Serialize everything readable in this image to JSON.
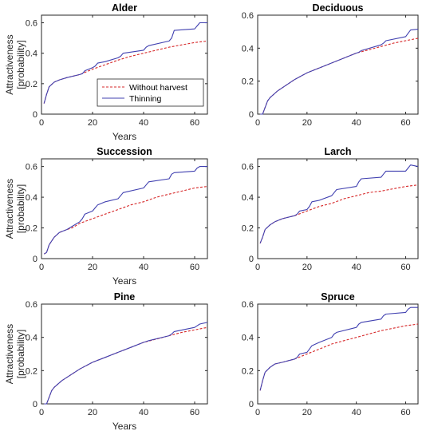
{
  "chart_data": [
    {
      "type": "line",
      "title": "Alder",
      "xlabel": "Years",
      "ylabel": [
        "Attractiveness",
        "[probability]"
      ],
      "xlim": [
        0,
        65
      ],
      "ylim": [
        0,
        0.65
      ],
      "xticks": [
        0,
        20,
        40,
        60
      ],
      "yticks": [
        0,
        0.2,
        0.4,
        0.6
      ],
      "legend": {
        "placement": "bottom-center",
        "entries": [
          "Without harvest",
          "Thinning"
        ]
      },
      "series": [
        {
          "name": "Without harvest",
          "color": "#d62728",
          "dash": true,
          "x": [
            1,
            2,
            3,
            5,
            7,
            10,
            15,
            20,
            25,
            30,
            35,
            40,
            45,
            50,
            55,
            60,
            65
          ],
          "y": [
            0.07,
            0.13,
            0.18,
            0.21,
            0.225,
            0.24,
            0.26,
            0.295,
            0.325,
            0.355,
            0.38,
            0.4,
            0.42,
            0.44,
            0.455,
            0.47,
            0.48
          ]
        },
        {
          "name": "Thinning",
          "color": "#4040b0",
          "dash": false,
          "x": [
            1,
            2,
            3,
            5,
            7,
            10,
            15,
            16,
            17,
            20,
            21,
            22,
            25,
            30,
            31,
            32,
            40,
            41,
            42,
            50,
            51,
            52,
            60,
            61,
            62,
            65
          ],
          "y": [
            0.07,
            0.13,
            0.18,
            0.21,
            0.225,
            0.24,
            0.26,
            0.265,
            0.285,
            0.305,
            0.315,
            0.335,
            0.345,
            0.37,
            0.38,
            0.4,
            0.42,
            0.44,
            0.45,
            0.48,
            0.5,
            0.55,
            0.56,
            0.58,
            0.6,
            0.6
          ]
        }
      ]
    },
    {
      "type": "line",
      "title": "Deciduous",
      "xlabel": "",
      "ylabel": [],
      "xlim": [
        0,
        65
      ],
      "ylim": [
        0,
        0.6
      ],
      "xticks": [
        0,
        20,
        40,
        60
      ],
      "yticks": [
        0,
        0.2,
        0.4,
        0.6
      ],
      "series": [
        {
          "name": "Without harvest",
          "color": "#d62728",
          "dash": true,
          "x": [
            1,
            2,
            3,
            4,
            5,
            8,
            10,
            15,
            20,
            25,
            30,
            35,
            40,
            45,
            50,
            55,
            60,
            65
          ],
          "y": [
            0,
            0,
            0.04,
            0.08,
            0.1,
            0.14,
            0.16,
            0.21,
            0.25,
            0.28,
            0.31,
            0.34,
            0.37,
            0.39,
            0.41,
            0.43,
            0.445,
            0.46
          ]
        },
        {
          "name": "Thinning",
          "color": "#4040b0",
          "dash": false,
          "x": [
            1,
            2,
            3,
            4,
            5,
            8,
            10,
            15,
            20,
            25,
            30,
            35,
            40,
            41,
            42,
            50,
            51,
            52,
            60,
            61,
            62,
            65
          ],
          "y": [
            0,
            0,
            0.04,
            0.08,
            0.1,
            0.14,
            0.16,
            0.21,
            0.25,
            0.28,
            0.31,
            0.34,
            0.37,
            0.375,
            0.385,
            0.42,
            0.43,
            0.445,
            0.47,
            0.49,
            0.51,
            0.515
          ]
        }
      ]
    },
    {
      "type": "line",
      "title": "Succession",
      "xlabel": "Years",
      "ylabel": [
        "Attractiveness",
        "[probability]"
      ],
      "xlim": [
        0,
        65
      ],
      "ylim": [
        0,
        0.65
      ],
      "xticks": [
        0,
        20,
        40,
        60
      ],
      "yticks": [
        0,
        0.2,
        0.4,
        0.6
      ],
      "series": [
        {
          "name": "Without harvest",
          "color": "#d62728",
          "dash": true,
          "x": [
            1,
            2,
            3,
            5,
            7,
            10,
            12,
            15,
            20,
            25,
            30,
            35,
            40,
            45,
            50,
            55,
            60,
            65
          ],
          "y": [
            0.03,
            0.04,
            0.09,
            0.14,
            0.17,
            0.19,
            0.2,
            0.23,
            0.26,
            0.29,
            0.32,
            0.35,
            0.37,
            0.4,
            0.42,
            0.44,
            0.46,
            0.47
          ]
        },
        {
          "name": "Thinning",
          "color": "#4040b0",
          "dash": false,
          "x": [
            1,
            2,
            3,
            5,
            7,
            10,
            12,
            15,
            16,
            17,
            20,
            21,
            22,
            25,
            30,
            31,
            32,
            40,
            41,
            42,
            50,
            51,
            52,
            60,
            61,
            62,
            65
          ],
          "y": [
            0.03,
            0.04,
            0.09,
            0.14,
            0.17,
            0.19,
            0.21,
            0.24,
            0.26,
            0.29,
            0.31,
            0.33,
            0.35,
            0.37,
            0.39,
            0.41,
            0.43,
            0.46,
            0.48,
            0.5,
            0.52,
            0.55,
            0.56,
            0.57,
            0.59,
            0.6,
            0.6
          ]
        }
      ]
    },
    {
      "type": "line",
      "title": "Larch",
      "xlabel": "",
      "ylabel": [],
      "xlim": [
        0,
        65
      ],
      "ylim": [
        0,
        0.65
      ],
      "xticks": [
        0,
        20,
        40,
        60
      ],
      "yticks": [
        0,
        0.2,
        0.4,
        0.6
      ],
      "series": [
        {
          "name": "Without harvest",
          "color": "#d62728",
          "dash": true,
          "x": [
            1,
            2,
            3,
            5,
            7,
            10,
            15,
            20,
            25,
            30,
            35,
            40,
            45,
            50,
            55,
            60,
            65
          ],
          "y": [
            0.1,
            0.14,
            0.19,
            0.22,
            0.24,
            0.26,
            0.28,
            0.31,
            0.34,
            0.36,
            0.39,
            0.41,
            0.43,
            0.44,
            0.455,
            0.47,
            0.48
          ]
        },
        {
          "name": "Thinning",
          "color": "#4040b0",
          "dash": false,
          "x": [
            1,
            2,
            3,
            5,
            7,
            10,
            15,
            16,
            17,
            20,
            21,
            22,
            25,
            30,
            31,
            32,
            40,
            41,
            42,
            50,
            51,
            52,
            60,
            61,
            62,
            65
          ],
          "y": [
            0.1,
            0.14,
            0.19,
            0.22,
            0.24,
            0.26,
            0.28,
            0.29,
            0.31,
            0.32,
            0.34,
            0.37,
            0.38,
            0.41,
            0.43,
            0.45,
            0.47,
            0.5,
            0.52,
            0.53,
            0.55,
            0.57,
            0.57,
            0.59,
            0.61,
            0.6
          ]
        }
      ]
    },
    {
      "type": "line",
      "title": "Pine",
      "xlabel": "Years",
      "ylabel": [
        "Attractiveness",
        "[probability]"
      ],
      "xlim": [
        0,
        65
      ],
      "ylim": [
        0,
        0.6
      ],
      "xticks": [
        0,
        20,
        40,
        60
      ],
      "yticks": [
        0,
        0.2,
        0.4,
        0.6
      ],
      "series": [
        {
          "name": "Without harvest",
          "color": "#d62728",
          "dash": true,
          "x": [
            1,
            2,
            3,
            4,
            5,
            8,
            10,
            15,
            20,
            25,
            30,
            35,
            40,
            45,
            50,
            55,
            60,
            65
          ],
          "y": [
            0,
            0,
            0.04,
            0.08,
            0.1,
            0.14,
            0.16,
            0.21,
            0.25,
            0.28,
            0.31,
            0.34,
            0.37,
            0.39,
            0.41,
            0.43,
            0.445,
            0.46
          ]
        },
        {
          "name": "Thinning",
          "color": "#4040b0",
          "dash": false,
          "x": [
            1,
            2,
            3,
            4,
            5,
            8,
            10,
            15,
            20,
            25,
            30,
            35,
            40,
            41,
            42,
            50,
            51,
            52,
            60,
            61,
            62,
            65
          ],
          "y": [
            0,
            0,
            0.04,
            0.08,
            0.1,
            0.14,
            0.16,
            0.21,
            0.25,
            0.28,
            0.31,
            0.34,
            0.37,
            0.375,
            0.38,
            0.41,
            0.42,
            0.435,
            0.46,
            0.47,
            0.48,
            0.49
          ]
        }
      ]
    },
    {
      "type": "line",
      "title": "Spruce",
      "xlabel": "",
      "ylabel": [],
      "xlim": [
        0,
        65
      ],
      "ylim": [
        0,
        0.6
      ],
      "xticks": [
        0,
        20,
        40,
        60
      ],
      "yticks": [
        0,
        0.2,
        0.4,
        0.6
      ],
      "series": [
        {
          "name": "Without harvest",
          "color": "#d62728",
          "dash": true,
          "x": [
            1,
            2,
            3,
            5,
            7,
            10,
            15,
            20,
            25,
            30,
            35,
            40,
            45,
            50,
            55,
            60,
            65
          ],
          "y": [
            0.08,
            0.14,
            0.19,
            0.22,
            0.24,
            0.25,
            0.27,
            0.3,
            0.33,
            0.36,
            0.38,
            0.4,
            0.42,
            0.44,
            0.455,
            0.47,
            0.48
          ]
        },
        {
          "name": "Thinning",
          "color": "#4040b0",
          "dash": false,
          "x": [
            1,
            2,
            3,
            5,
            7,
            10,
            15,
            16,
            17,
            20,
            21,
            22,
            25,
            30,
            31,
            32,
            40,
            41,
            42,
            50,
            51,
            52,
            60,
            61,
            62,
            65
          ],
          "y": [
            0.08,
            0.14,
            0.19,
            0.22,
            0.24,
            0.25,
            0.27,
            0.28,
            0.3,
            0.31,
            0.33,
            0.35,
            0.37,
            0.4,
            0.42,
            0.43,
            0.46,
            0.48,
            0.49,
            0.51,
            0.53,
            0.54,
            0.55,
            0.57,
            0.58,
            0.58
          ]
        }
      ]
    }
  ]
}
